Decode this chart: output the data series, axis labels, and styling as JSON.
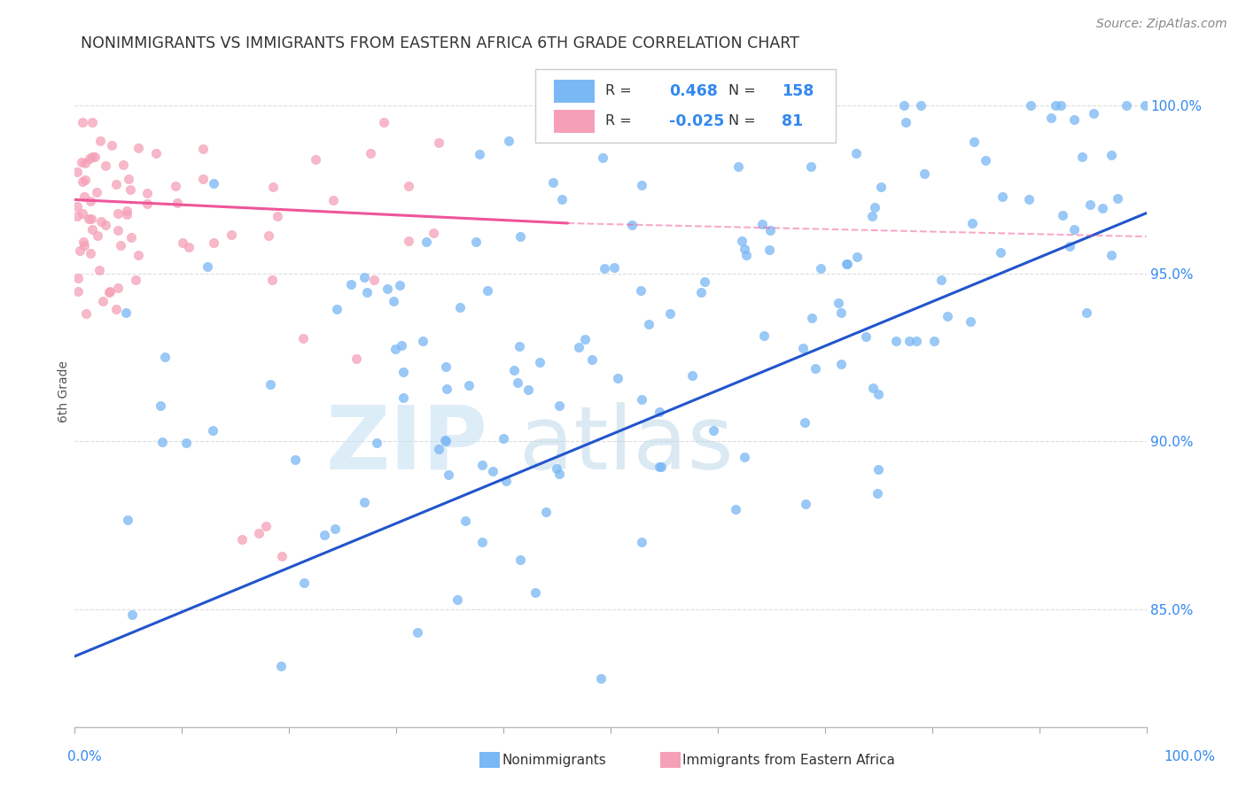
{
  "title": "NONIMMIGRANTS VS IMMIGRANTS FROM EASTERN AFRICA 6TH GRADE CORRELATION CHART",
  "source_text": "Source: ZipAtlas.com",
  "ylabel": "6th Grade",
  "watermark_zip": "ZIP",
  "watermark_atlas": "atlas",
  "blue_R": 0.468,
  "blue_N": 158,
  "pink_R": -0.025,
  "pink_N": 81,
  "blue_color": "#7ab8f5",
  "pink_color": "#f5a0b8",
  "blue_line_color": "#2255cc",
  "pink_line_color": "#ee5599",
  "background_color": "#ffffff",
  "grid_color": "#dddddd",
  "xlim": [
    0.0,
    1.0
  ],
  "ylim": [
    0.815,
    1.015
  ],
  "ytick_values": [
    0.85,
    0.9,
    0.95,
    1.0
  ],
  "ytick_labels": [
    "85.0%",
    "90.0%",
    "95.0%",
    "100.0%"
  ],
  "blue_line_x": [
    0.0,
    1.0
  ],
  "blue_line_y": [
    0.836,
    0.968
  ],
  "pink_line_x": [
    0.0,
    0.46
  ],
  "pink_line_y": [
    0.972,
    0.965
  ]
}
